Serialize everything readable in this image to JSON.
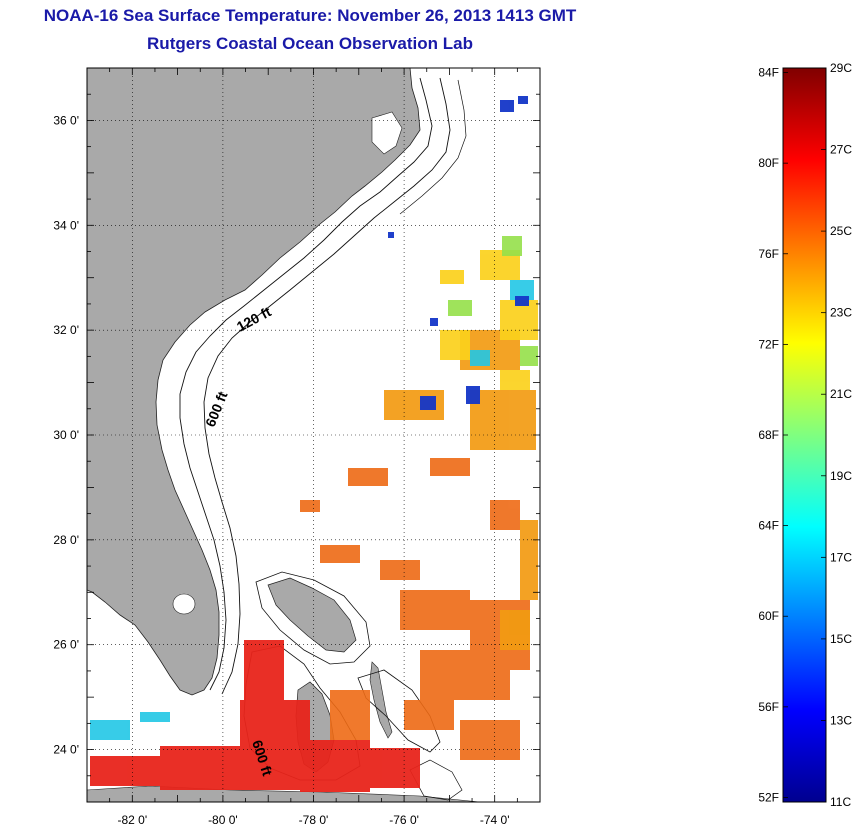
{
  "header": {
    "title": "NOAA-16 Sea Surface Temperature:  November 26, 2013 1413 GMT",
    "subtitle": "Rutgers Coastal Ocean Observation Lab"
  },
  "map": {
    "lon_range": [
      -83,
      -73
    ],
    "lat_range": [
      23,
      37
    ],
    "lon_ticks": [
      -82,
      -80,
      -78,
      -76,
      -74
    ],
    "lon_tick_labels": [
      "-82 0'",
      "-80 0'",
      "-78 0'",
      "-76 0'",
      "-74 0'"
    ],
    "lat_ticks": [
      24,
      26,
      28,
      30,
      32,
      34,
      36
    ],
    "lat_tick_labels": [
      "24 0'",
      "26 0'",
      "28 0'",
      "30 0'",
      "32 0'",
      "34 0'",
      "36 0'"
    ],
    "grid": "dotted",
    "land_color": "#a9a9a9",
    "contour_labels": [
      "120 ft",
      "600 ft",
      "600 ft"
    ]
  },
  "colorbar": {
    "left_labels": [
      "84F",
      "80F",
      "76F",
      "72F",
      "68F",
      "64F",
      "60F",
      "56F",
      "52F"
    ],
    "right_labels": [
      "29C",
      "27C",
      "25C",
      "23C",
      "21C",
      "19C",
      "17C",
      "15C",
      "13C",
      "11C"
    ],
    "celsius_range": [
      11,
      29
    ]
  }
}
